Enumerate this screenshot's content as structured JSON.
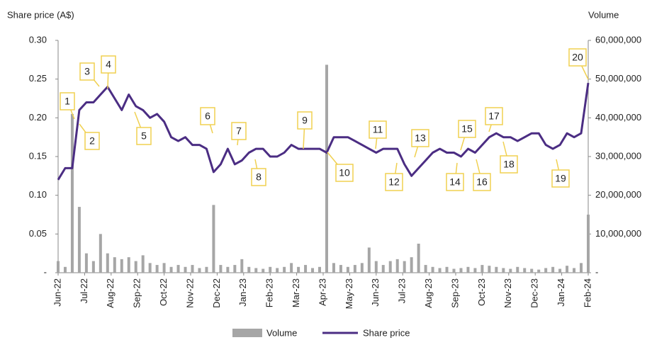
{
  "chart_data": {
    "type": "bar_line",
    "y_axis_label": "Share price (A$)",
    "y2_axis_label": "Volume",
    "x_tick_labels": [
      "Jun-22",
      "Jul-22",
      "Aug-22",
      "Sep-22",
      "Oct-22",
      "Nov-22",
      "Dec-22",
      "Jan-23",
      "Feb-23",
      "Mar-23",
      "Apr-23",
      "May-23",
      "Jun-23",
      "Jul-23",
      "Aug-23",
      "Sep-23",
      "Oct-23",
      "Nov-23",
      "Dec-23",
      "Jan-24",
      "Feb-24"
    ],
    "ylim": [
      0,
      0.3
    ],
    "yticks": [
      {
        "value": 0,
        "label": "-"
      },
      0.05,
      {
        "value": 0.1,
        "label": "0.10"
      },
      0.15,
      {
        "value": 0.2,
        "label": "0.20"
      },
      0.25,
      {
        "value": 0.3,
        "label": "0.30"
      }
    ],
    "y2lim": [
      0,
      60000000
    ],
    "y2ticks": [
      {
        "value": 0,
        "label": "-"
      },
      {
        "value": 10000000,
        "label": "10,000,000"
      },
      {
        "value": 20000000,
        "label": "20,000,000"
      },
      {
        "value": 30000000,
        "label": "30,000,000"
      },
      {
        "value": 40000000,
        "label": "40,000,000"
      },
      {
        "value": 50000000,
        "label": "50,000,000"
      },
      {
        "value": 60000000,
        "label": "60,000,000"
      }
    ],
    "series": [
      {
        "name": "Volume",
        "type": "bar",
        "axis": "y2",
        "color": "#a6a6a6",
        "values": [
          3000000,
          1500000,
          41000000,
          17000000,
          5000000,
          3000000,
          10000000,
          5000000,
          4000000,
          3500000,
          4000000,
          3000000,
          4500000,
          2500000,
          2000000,
          2500000,
          1500000,
          2000000,
          1500000,
          2000000,
          1200000,
          1500000,
          17500000,
          2000000,
          1500000,
          2000000,
          3500000,
          1500000,
          1200000,
          1000000,
          1500000,
          1200000,
          1500000,
          2500000,
          1500000,
          2000000,
          1200000,
          1500000,
          53700000,
          2500000,
          2000000,
          1500000,
          2000000,
          2500000,
          6500000,
          3000000,
          2000000,
          3000000,
          3500000,
          3000000,
          4000000,
          7500000,
          2000000,
          1500000,
          1200000,
          1500000,
          1000000,
          1200000,
          1500000,
          1200000,
          2000000,
          1800000,
          1500000,
          1200000,
          1000000,
          1500000,
          1200000,
          1000000,
          800000,
          1200000,
          1500000,
          1000000,
          1800000,
          1200000,
          2500000,
          15000000
        ]
      },
      {
        "name": "Share price",
        "type": "line",
        "color": "#4b2d83",
        "values": [
          0.12,
          0.135,
          0.135,
          0.21,
          0.22,
          0.22,
          0.23,
          0.24,
          0.225,
          0.21,
          0.23,
          0.215,
          0.21,
          0.2,
          0.205,
          0.195,
          0.175,
          0.17,
          0.175,
          0.165,
          0.165,
          0.16,
          0.13,
          0.14,
          0.16,
          0.14,
          0.145,
          0.155,
          0.16,
          0.16,
          0.15,
          0.15,
          0.155,
          0.165,
          0.16,
          0.16,
          0.16,
          0.16,
          0.155,
          0.175,
          0.175,
          0.175,
          0.17,
          0.165,
          0.16,
          0.155,
          0.16,
          0.16,
          0.16,
          0.14,
          0.125,
          0.135,
          0.145,
          0.155,
          0.16,
          0.155,
          0.155,
          0.15,
          0.16,
          0.155,
          0.165,
          0.175,
          0.18,
          0.175,
          0.175,
          0.17,
          0.175,
          0.18,
          0.18,
          0.165,
          0.16,
          0.165,
          0.18,
          0.175,
          0.18,
          0.245
        ]
      }
    ],
    "annotations": [
      "1",
      "2",
      "3",
      "4",
      "5",
      "6",
      "7",
      "8",
      "9",
      "10",
      "11",
      "12",
      "13",
      "14",
      "15",
      "16",
      "17",
      "18",
      "19",
      "20"
    ]
  }
}
